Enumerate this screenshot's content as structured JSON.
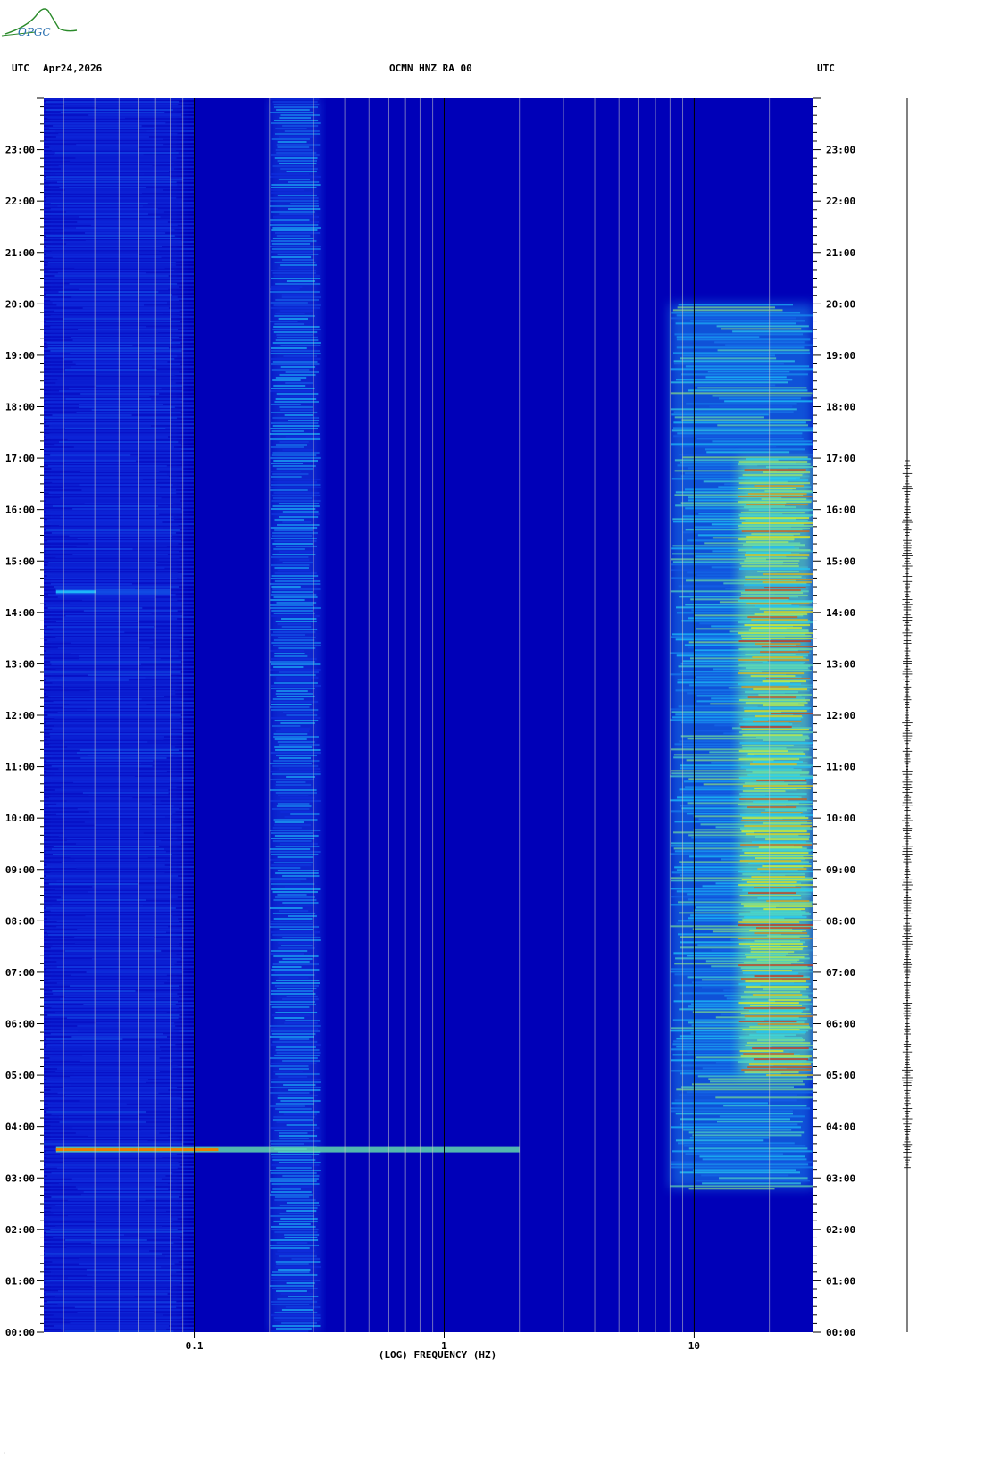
{
  "header": {
    "left_tz": "UTC",
    "date": "Apr24,2026",
    "station": "OCMN HNZ RA 00",
    "right_tz": "UTC"
  },
  "logo": {
    "text": "OPGC",
    "icon": "opgc-logo-icon"
  },
  "footer": {
    "mark": "·"
  },
  "colors": {
    "background": "#0000b8",
    "low_energy": "#1030e0",
    "mid_energy": "#20d8ff",
    "high_energy": "#ffff00",
    "peak_energy": "#d80000",
    "gridline_minor": "#c8c8c8",
    "gridline_major": "#000000"
  },
  "chart_data": {
    "type": "heatmap",
    "title": "OCMN HNZ RA 00",
    "xlabel": "(LOG) FREQUENCY (HZ)",
    "ylabel": "UTC",
    "x_scale": "log",
    "xlim": [
      0.025,
      30
    ],
    "x_ticks": [
      {
        "value": 0.1,
        "label": "0.1"
      },
      {
        "value": 1,
        "label": "1"
      },
      {
        "value": 10,
        "label": "10"
      }
    ],
    "ylim": [
      0,
      24
    ],
    "y_ticks": [
      {
        "value": 0,
        "label": "00:00"
      },
      {
        "value": 1,
        "label": "01:00"
      },
      {
        "value": 2,
        "label": "02:00"
      },
      {
        "value": 3,
        "label": "03:00"
      },
      {
        "value": 4,
        "label": "04:00"
      },
      {
        "value": 5,
        "label": "05:00"
      },
      {
        "value": 6,
        "label": "06:00"
      },
      {
        "value": 7,
        "label": "07:00"
      },
      {
        "value": 8,
        "label": "08:00"
      },
      {
        "value": 9,
        "label": "09:00"
      },
      {
        "value": 10,
        "label": "10:00"
      },
      {
        "value": 11,
        "label": "11:00"
      },
      {
        "value": 12,
        "label": "12:00"
      },
      {
        "value": 13,
        "label": "13:00"
      },
      {
        "value": 14,
        "label": "14:00"
      },
      {
        "value": 15,
        "label": "15:00"
      },
      {
        "value": 16,
        "label": "16:00"
      },
      {
        "value": 17,
        "label": "17:00"
      },
      {
        "value": 18,
        "label": "18:00"
      },
      {
        "value": 19,
        "label": "19:00"
      },
      {
        "value": 20,
        "label": "20:00"
      },
      {
        "value": 21,
        "label": "21:00"
      },
      {
        "value": 22,
        "label": "22:00"
      },
      {
        "value": 23,
        "label": "23:00"
      }
    ],
    "x_gridlines": [
      0.03,
      0.04,
      0.05,
      0.06,
      0.07,
      0.08,
      0.09,
      0.2,
      0.3,
      0.4,
      0.5,
      0.6,
      0.7,
      0.8,
      0.9,
      2,
      3,
      4,
      5,
      6,
      7,
      8,
      9,
      20
    ],
    "x_major_gridlines": [
      0.1,
      1,
      10
    ],
    "energy_bands": [
      {
        "f_min": 0.2,
        "f_max": 0.32,
        "t_min": 0,
        "t_max": 24,
        "level": 0.45
      },
      {
        "f_min": 0.025,
        "f_max": 0.09,
        "t_min": 0,
        "t_max": 24,
        "level": 0.3
      },
      {
        "f_min": 8,
        "f_max": 30,
        "t_min": 2.8,
        "t_max": 20,
        "level": 0.6
      },
      {
        "f_min": 15,
        "f_max": 30,
        "t_min": 5,
        "t_max": 17,
        "level": 0.85
      }
    ],
    "events": [
      {
        "time": 3.55,
        "f_min": 0.028,
        "f_max": 2.0,
        "level": 0.9
      },
      {
        "time": 14.4,
        "f_min": 0.028,
        "f_max": 0.08,
        "level": 0.5
      }
    ]
  },
  "seismogram": {
    "trace_start": 3.2,
    "trace_end": 17.0
  }
}
